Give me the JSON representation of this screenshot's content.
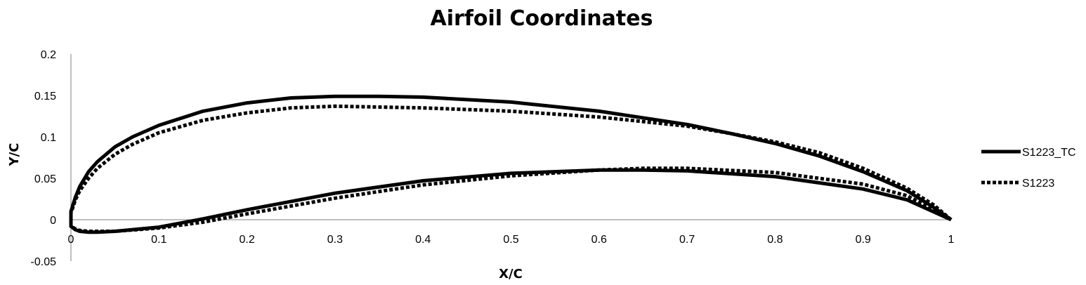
{
  "chart_data": {
    "type": "line",
    "title": "Airfoil Coordinates",
    "xlabel": "X/C",
    "ylabel": "Y/C",
    "xlim": [
      0,
      1
    ],
    "ylim": [
      -0.05,
      0.2
    ],
    "x_ticks": [
      "0",
      "0.1",
      "0.2",
      "0.3",
      "0.4",
      "0.5",
      "0.6",
      "0.7",
      "0.8",
      "0.9",
      "1"
    ],
    "y_ticks": [
      "0.2",
      "0.15",
      "0.1",
      "0.05",
      "0",
      "-0.05"
    ],
    "grid": false,
    "legend_position": "right",
    "series": [
      {
        "name": "S1223_TC",
        "style": "solid",
        "color": "#000000",
        "x": [
          1.0,
          0.98,
          0.95,
          0.9,
          0.85,
          0.8,
          0.75,
          0.7,
          0.6,
          0.5,
          0.4,
          0.35,
          0.3,
          0.25,
          0.2,
          0.15,
          0.1,
          0.07,
          0.05,
          0.03,
          0.02,
          0.01,
          0.005,
          0.0,
          0.0,
          0.005,
          0.01,
          0.02,
          0.03,
          0.05,
          0.1,
          0.15,
          0.2,
          0.3,
          0.4,
          0.5,
          0.6,
          0.65,
          0.7,
          0.8,
          0.9,
          0.95,
          1.0
        ],
        "y": [
          0.0,
          0.015,
          0.035,
          0.058,
          0.077,
          0.092,
          0.104,
          0.115,
          0.131,
          0.142,
          0.148,
          0.149,
          0.149,
          0.147,
          0.141,
          0.131,
          0.114,
          0.1,
          0.088,
          0.07,
          0.058,
          0.04,
          0.027,
          0.01,
          -0.008,
          -0.012,
          -0.014,
          -0.015,
          -0.015,
          -0.014,
          -0.009,
          0.001,
          0.012,
          0.032,
          0.047,
          0.056,
          0.06,
          0.06,
          0.059,
          0.052,
          0.037,
          0.024,
          0.0
        ]
      },
      {
        "name": "S1223",
        "style": "dotted",
        "color": "#000000",
        "x": [
          1.0,
          0.98,
          0.95,
          0.9,
          0.85,
          0.8,
          0.75,
          0.7,
          0.6,
          0.5,
          0.4,
          0.35,
          0.3,
          0.25,
          0.2,
          0.15,
          0.1,
          0.07,
          0.05,
          0.03,
          0.02,
          0.01,
          0.005,
          0.0,
          0.0,
          0.005,
          0.01,
          0.02,
          0.03,
          0.05,
          0.1,
          0.15,
          0.2,
          0.3,
          0.4,
          0.5,
          0.6,
          0.65,
          0.7,
          0.8,
          0.9,
          0.95,
          1.0
        ],
        "y": [
          0.0,
          0.018,
          0.038,
          0.062,
          0.081,
          0.094,
          0.104,
          0.113,
          0.124,
          0.131,
          0.135,
          0.136,
          0.137,
          0.135,
          0.129,
          0.12,
          0.105,
          0.091,
          0.079,
          0.062,
          0.05,
          0.035,
          0.024,
          0.008,
          -0.008,
          -0.011,
          -0.013,
          -0.014,
          -0.014,
          -0.014,
          -0.01,
          -0.003,
          0.007,
          0.026,
          0.042,
          0.053,
          0.06,
          0.062,
          0.062,
          0.057,
          0.043,
          0.029,
          0.0
        ]
      }
    ]
  }
}
